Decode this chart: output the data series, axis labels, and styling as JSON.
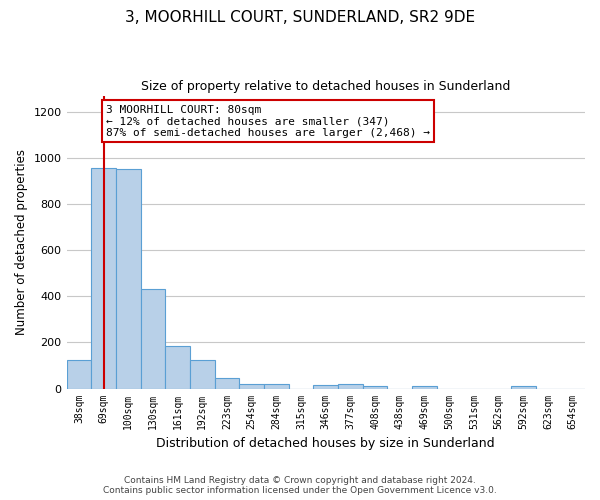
{
  "title": "3, MOORHILL COURT, SUNDERLAND, SR2 9DE",
  "subtitle": "Size of property relative to detached houses in Sunderland",
  "xlabel": "Distribution of detached houses by size in Sunderland",
  "ylabel": "Number of detached properties",
  "categories": [
    "38sqm",
    "69sqm",
    "100sqm",
    "130sqm",
    "161sqm",
    "192sqm",
    "223sqm",
    "254sqm",
    "284sqm",
    "315sqm",
    "346sqm",
    "377sqm",
    "408sqm",
    "438sqm",
    "469sqm",
    "500sqm",
    "531sqm",
    "562sqm",
    "592sqm",
    "623sqm",
    "654sqm"
  ],
  "values": [
    125,
    955,
    950,
    430,
    185,
    125,
    45,
    20,
    20,
    0,
    15,
    20,
    10,
    0,
    10,
    0,
    0,
    0,
    10,
    0,
    0
  ],
  "bar_color": "#b8d0e8",
  "bar_edge_color": "#5a9fd4",
  "ylim": [
    0,
    1270
  ],
  "yticks": [
    0,
    200,
    400,
    600,
    800,
    1000,
    1200
  ],
  "red_line_x": 1.0,
  "annotation_text": "3 MOORHILL COURT: 80sqm\n← 12% of detached houses are smaller (347)\n87% of semi-detached houses are larger (2,468) →",
  "annotation_box_color": "#ffffff",
  "annotation_box_edge_color": "#cc0000",
  "footer_line1": "Contains HM Land Registry data © Crown copyright and database right 2024.",
  "footer_line2": "Contains public sector information licensed under the Open Government Licence v3.0.",
  "background_color": "#ffffff",
  "grid_color": "#c8c8c8"
}
